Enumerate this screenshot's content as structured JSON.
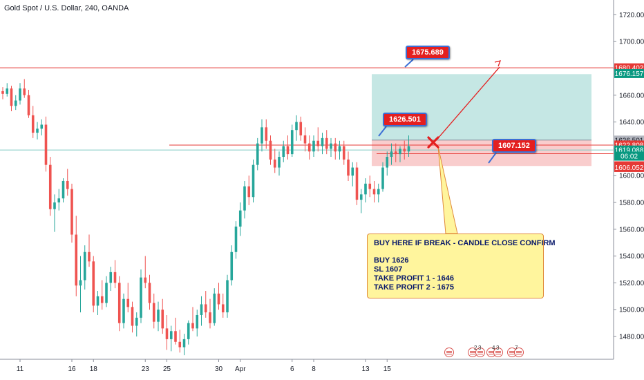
{
  "title": "Gold Spot / U.S. Dollar, 240, OANDA",
  "chart_data": {
    "type": "candlestick",
    "instrument": "Gold Spot / U.S. Dollar",
    "timeframe": "240",
    "source": "OANDA",
    "y_axis": {
      "ylim": [
        1463,
        1731
      ],
      "ticks": [
        1480,
        1500,
        1520,
        1540,
        1560,
        1580,
        1600,
        1620,
        1640,
        1660,
        1680,
        1700,
        1720
      ],
      "tick_labels": [
        "1480.000",
        "1500.000",
        "1520.000",
        "1540.000",
        "1560.000",
        "1580.000",
        "1600.000",
        "1620.000",
        "1640.000",
        "1660.000",
        "1680.000",
        "1700.000",
        "1720.000"
      ]
    },
    "x_axis": {
      "labels": [
        "11",
        "16",
        "18",
        "23",
        "25",
        "30",
        "Apr",
        "6",
        "8",
        "13",
        "15"
      ],
      "label_positions": [
        4,
        16,
        21,
        33,
        38,
        50,
        55,
        67,
        72,
        84,
        89
      ]
    },
    "price_tags": [
      {
        "value": "1680.402",
        "price": 1680.402,
        "color": "#e53935"
      },
      {
        "value": "1676.157",
        "price": 1676.157,
        "color": "#089981"
      },
      {
        "value": "1626.501",
        "price": 1626.501,
        "color": "#b2b5be"
      },
      {
        "value": "1622.808",
        "price": 1622.808,
        "color": "#e53935"
      },
      {
        "value": "1619.088",
        "price": 1619.088,
        "color": "#089981"
      },
      {
        "value": "06:02",
        "price": 1614.5,
        "color": "#089981"
      },
      {
        "value": "1607.294",
        "price": 1607.294,
        "color": "#e53935"
      },
      {
        "value": "1606.052",
        "price": 1606.052,
        "color": "#e53935"
      }
    ],
    "candles": [
      [
        1663,
        1666,
        1657,
        1661
      ],
      [
        1661,
        1669,
        1659,
        1665
      ],
      [
        1665,
        1667,
        1648,
        1652
      ],
      [
        1652,
        1660,
        1649,
        1656
      ],
      [
        1656,
        1669,
        1653,
        1665
      ],
      [
        1665,
        1672,
        1658,
        1660
      ],
      [
        1660,
        1664,
        1643,
        1645
      ],
      [
        1645,
        1652,
        1628,
        1632
      ],
      [
        1632,
        1640,
        1627,
        1635
      ],
      [
        1635,
        1642,
        1630,
        1638
      ],
      [
        1638,
        1644,
        1603,
        1608
      ],
      [
        1608,
        1614,
        1570,
        1575
      ],
      [
        1575,
        1586,
        1558,
        1580
      ],
      [
        1580,
        1590,
        1574,
        1583
      ],
      [
        1583,
        1598,
        1580,
        1596
      ],
      [
        1596,
        1605,
        1585,
        1590
      ],
      [
        1590,
        1594,
        1550,
        1556
      ],
      [
        1556,
        1570,
        1510,
        1518
      ],
      [
        1518,
        1540,
        1498,
        1522
      ],
      [
        1522,
        1548,
        1515,
        1543
      ],
      [
        1543,
        1556,
        1532,
        1536
      ],
      [
        1536,
        1540,
        1498,
        1503
      ],
      [
        1503,
        1514,
        1496,
        1510
      ],
      [
        1510,
        1522,
        1500,
        1505
      ],
      [
        1505,
        1525,
        1502,
        1520
      ],
      [
        1520,
        1532,
        1514,
        1528
      ],
      [
        1528,
        1537,
        1516,
        1520
      ],
      [
        1520,
        1525,
        1484,
        1490
      ],
      [
        1490,
        1512,
        1486,
        1508
      ],
      [
        1508,
        1520,
        1498,
        1502
      ],
      [
        1502,
        1506,
        1483,
        1488
      ],
      [
        1488,
        1498,
        1480,
        1494
      ],
      [
        1494,
        1530,
        1490,
        1524
      ],
      [
        1524,
        1540,
        1516,
        1520
      ],
      [
        1520,
        1526,
        1500,
        1505
      ],
      [
        1505,
        1512,
        1486,
        1491
      ],
      [
        1491,
        1506,
        1484,
        1500
      ],
      [
        1500,
        1508,
        1482,
        1486
      ],
      [
        1486,
        1496,
        1470,
        1478
      ],
      [
        1478,
        1488,
        1469,
        1484
      ],
      [
        1484,
        1494,
        1474,
        1476
      ],
      [
        1476,
        1485,
        1468,
        1472
      ],
      [
        1472,
        1482,
        1466,
        1478
      ],
      [
        1478,
        1492,
        1474,
        1490
      ],
      [
        1490,
        1502,
        1484,
        1486
      ],
      [
        1486,
        1500,
        1480,
        1496
      ],
      [
        1496,
        1510,
        1488,
        1504
      ],
      [
        1504,
        1514,
        1494,
        1498
      ],
      [
        1498,
        1508,
        1486,
        1490
      ],
      [
        1490,
        1516,
        1488,
        1512
      ],
      [
        1512,
        1520,
        1500,
        1504
      ],
      [
        1504,
        1512,
        1494,
        1498
      ],
      [
        1498,
        1526,
        1494,
        1522
      ],
      [
        1522,
        1548,
        1518,
        1543
      ],
      [
        1543,
        1566,
        1538,
        1562
      ],
      [
        1562,
        1580,
        1555,
        1574
      ],
      [
        1574,
        1596,
        1568,
        1592
      ],
      [
        1592,
        1600,
        1578,
        1584
      ],
      [
        1584,
        1612,
        1580,
        1608
      ],
      [
        1608,
        1628,
        1604,
        1624
      ],
      [
        1624,
        1642,
        1618,
        1636
      ],
      [
        1636,
        1642,
        1620,
        1626
      ],
      [
        1626,
        1630,
        1608,
        1612
      ],
      [
        1612,
        1620,
        1602,
        1606
      ],
      [
        1606,
        1618,
        1600,
        1614
      ],
      [
        1614,
        1626,
        1610,
        1622
      ],
      [
        1622,
        1630,
        1612,
        1616
      ],
      [
        1616,
        1638,
        1614,
        1634
      ],
      [
        1634,
        1645,
        1626,
        1640
      ],
      [
        1640,
        1644,
        1626,
        1630
      ],
      [
        1630,
        1636,
        1618,
        1624
      ],
      [
        1624,
        1630,
        1612,
        1618
      ],
      [
        1618,
        1630,
        1614,
        1626
      ],
      [
        1626,
        1636,
        1618,
        1622
      ],
      [
        1622,
        1632,
        1616,
        1628
      ],
      [
        1628,
        1634,
        1616,
        1620
      ],
      [
        1620,
        1628,
        1614,
        1624
      ],
      [
        1624,
        1628,
        1612,
        1618
      ],
      [
        1618,
        1626,
        1612,
        1622
      ],
      [
        1622,
        1626,
        1608,
        1612
      ],
      [
        1612,
        1618,
        1596,
        1600
      ],
      [
        1600,
        1610,
        1592,
        1606
      ],
      [
        1606,
        1610,
        1578,
        1582
      ],
      [
        1582,
        1590,
        1572,
        1586
      ],
      [
        1586,
        1598,
        1580,
        1594
      ],
      [
        1594,
        1600,
        1584,
        1590
      ],
      [
        1590,
        1596,
        1580,
        1586
      ],
      [
        1586,
        1594,
        1580,
        1590
      ],
      [
        1590,
        1610,
        1588,
        1606
      ],
      [
        1606,
        1618,
        1600,
        1614
      ],
      [
        1614,
        1624,
        1608,
        1618
      ],
      [
        1618,
        1624,
        1610,
        1616
      ],
      [
        1616,
        1622,
        1610,
        1620
      ],
      [
        1620,
        1626,
        1612,
        1618
      ],
      [
        1618,
        1630,
        1614,
        1622
      ]
    ]
  },
  "levels": {
    "resistance_top": 1680.4,
    "entry_line": 1622.8,
    "stop_line": 1616.3,
    "current_price_line": 1619.1
  },
  "zones": {
    "profit": {
      "from": 1626.5,
      "to": 1675.7,
      "color": "#b2dfdb"
    },
    "loss": {
      "from": 1607.2,
      "to": 1626.5,
      "color": "#f8c8c8"
    }
  },
  "callouts": [
    {
      "label": "1675.689",
      "price": 1675.689
    },
    {
      "label": "1626.501",
      "price": 1626.501
    },
    {
      "label": "1607.152",
      "price": 1607.152
    }
  ],
  "note": {
    "heading": "BUY HERE IF BREAK - CANDLE CLOSE CONFIRM",
    "lines": [
      "BUY 1626",
      "SL 1607",
      "TAKE PROFIT 1 - 1646",
      "TAKE PROFIT 2 - 1675"
    ]
  },
  "event_badges": [
    "2",
    "3",
    "4",
    "3",
    "7"
  ],
  "colors": {
    "up": "#26a69a",
    "down": "#ef5350",
    "red_line": "#e53935",
    "teal_line": "#80cbc4"
  }
}
